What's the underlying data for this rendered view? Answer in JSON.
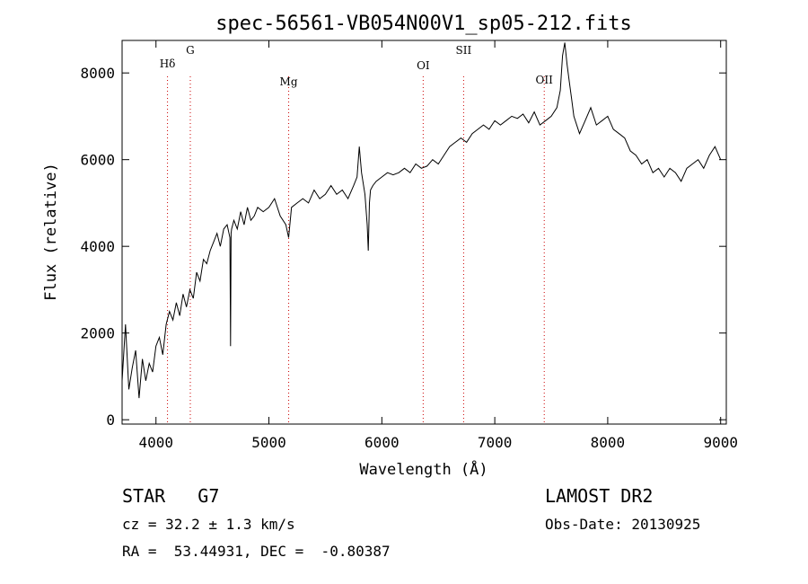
{
  "chart_data": {
    "type": "line",
    "title": "spec-56561-VB054N00V1_sp05-212.fits",
    "xlabel": "Wavelength (Å)",
    "ylabel": "Flux (relative)",
    "xlim": [
      3700,
      9050
    ],
    "ylim": [
      -100,
      8750
    ],
    "x_ticks": [
      4000,
      5000,
      6000,
      7000,
      8000,
      9000
    ],
    "y_ticks": [
      0,
      2000,
      4000,
      6000,
      8000
    ],
    "grid": false,
    "line_color": "#000000",
    "marker_color": "#cc0000",
    "spectral_lines": [
      {
        "label": "Hδ",
        "wavelength": 4102
      },
      {
        "label": "G",
        "wavelength": 4304
      },
      {
        "label": "Mg",
        "wavelength": 5175
      },
      {
        "label": "OI",
        "wavelength": 6366
      },
      {
        "label": "SII",
        "wavelength": 6724
      },
      {
        "label": "OII",
        "wavelength": 7438
      }
    ],
    "series": [
      {
        "values_note": "",
        "x": [
          3700,
          3730,
          3760,
          3790,
          3820,
          3850,
          3880,
          3910,
          3940,
          3970,
          4000,
          4030,
          4060,
          4090,
          4120,
          4150,
          4180,
          4210,
          4240,
          4270,
          4300,
          4330,
          4360,
          4390,
          4420,
          4450,
          4480,
          4510,
          4540,
          4570,
          4600,
          4630,
          4655,
          4660,
          4665,
          4670,
          4690,
          4720,
          4750,
          4780,
          4810,
          4840,
          4870,
          4900,
          4950,
          5000,
          5050,
          5100,
          5150,
          5175,
          5200,
          5250,
          5300,
          5350,
          5400,
          5450,
          5500,
          5550,
          5600,
          5650,
          5700,
          5750,
          5780,
          5800,
          5820,
          5850,
          5870,
          5880,
          5890,
          5900,
          5920,
          5950,
          6000,
          6050,
          6100,
          6150,
          6200,
          6250,
          6300,
          6350,
          6400,
          6450,
          6500,
          6550,
          6600,
          6650,
          6700,
          6750,
          6800,
          6850,
          6900,
          6950,
          7000,
          7050,
          7100,
          7150,
          7200,
          7250,
          7300,
          7350,
          7400,
          7450,
          7500,
          7550,
          7580,
          7600,
          7620,
          7640,
          7660,
          7680,
          7700,
          7750,
          7800,
          7850,
          7900,
          7950,
          8000,
          8050,
          8100,
          8150,
          8200,
          8250,
          8300,
          8350,
          8400,
          8450,
          8500,
          8550,
          8600,
          8650,
          8700,
          8750,
          8800,
          8850,
          8900,
          8950,
          9000
        ],
        "y": [
          900,
          2200,
          700,
          1200,
          1600,
          500,
          1400,
          900,
          1300,
          1100,
          1700,
          1900,
          1500,
          2200,
          2500,
          2300,
          2700,
          2400,
          2900,
          2600,
          3000,
          2800,
          3400,
          3200,
          3700,
          3600,
          3900,
          4100,
          4300,
          4000,
          4400,
          4500,
          4200,
          1700,
          4300,
          4400,
          4600,
          4400,
          4800,
          4500,
          4900,
          4600,
          4700,
          4900,
          4800,
          4900,
          5100,
          4700,
          4500,
          4200,
          4900,
          5000,
          5100,
          5000,
          5300,
          5100,
          5200,
          5400,
          5200,
          5300,
          5100,
          5400,
          5600,
          6300,
          5700,
          5200,
          4500,
          3900,
          5000,
          5300,
          5400,
          5500,
          5600,
          5700,
          5650,
          5700,
          5800,
          5700,
          5900,
          5800,
          5850,
          6000,
          5900,
          6100,
          6300,
          6400,
          6500,
          6400,
          6600,
          6700,
          6800,
          6700,
          6900,
          6800,
          6900,
          7000,
          6950,
          7050,
          6850,
          7100,
          6800,
          6900,
          7000,
          7200,
          7600,
          8400,
          8700,
          8200,
          7800,
          7400,
          7000,
          6600,
          6900,
          7200,
          6800,
          6900,
          7000,
          6700,
          6600,
          6500,
          6200,
          6100,
          5900,
          6000,
          5700,
          5800,
          5600,
          5800,
          5700,
          5500,
          5800,
          5900,
          6000,
          5800,
          6100,
          6300,
          6000
        ]
      }
    ]
  },
  "info": {
    "object_class": "STAR",
    "subclass": "G7",
    "survey": "LAMOST DR2",
    "cz": "cz = 32.2 ± 1.3 km/s",
    "obs_date": "Obs-Date: 20130925",
    "coords": "RA =  53.44931, DEC =  -0.80387"
  }
}
